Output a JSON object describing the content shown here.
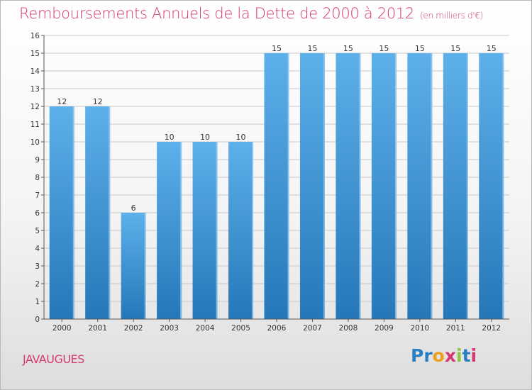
{
  "chart_data": {
    "type": "bar",
    "title": "Remboursements Annuels de la Dette de 2000 à 2012",
    "unit_note": "(en milliers d'€)",
    "categories": [
      "2000",
      "2001",
      "2002",
      "2003",
      "2004",
      "2005",
      "2006",
      "2007",
      "2008",
      "2009",
      "2010",
      "2011",
      "2012"
    ],
    "values": [
      12,
      12,
      6,
      10,
      10,
      10,
      15,
      15,
      15,
      15,
      15,
      15,
      15
    ],
    "ylim": [
      0,
      16
    ],
    "yticks": [
      0,
      1,
      2,
      3,
      4,
      5,
      6,
      7,
      8,
      9,
      10,
      11,
      12,
      13,
      14,
      15,
      16
    ],
    "grid": true,
    "bar_color_top": "#5eb0ea",
    "bar_color_bottom": "#2677b8",
    "grid_color": "#c8c8c8"
  },
  "location": "JAVAUGUES",
  "logo": {
    "letters": [
      "P",
      "r",
      "o",
      "x",
      "i",
      "t",
      "i"
    ],
    "colors": [
      "#2a7fc4",
      "#2a7fc4",
      "#f0a020",
      "#d6396f",
      "#8cc540",
      "#2a7fc4",
      "#d6396f"
    ]
  },
  "colors": {
    "accent": "#d6396f"
  }
}
